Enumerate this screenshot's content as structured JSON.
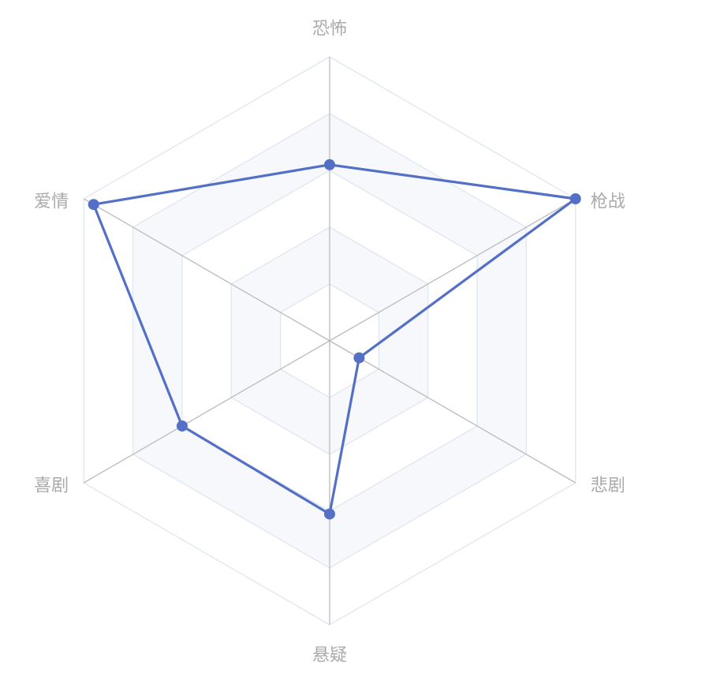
{
  "chart_data": {
    "type": "radar",
    "title": "",
    "indicators": [
      "恐怖",
      "枪战",
      "悲剧",
      "悬疑",
      "喜剧",
      "爱情"
    ],
    "max": 100,
    "split_number": 5,
    "series": [
      {
        "values": [
          62,
          100,
          12,
          61,
          60,
          96
        ]
      }
    ],
    "colors": {
      "series": "#5470c6",
      "split_line": "#e0e6f1",
      "axis_line": "#bbbbbb",
      "band_even": "#ffffff",
      "band_odd": "#f6f8fc",
      "label": "#aaaaaa"
    }
  }
}
